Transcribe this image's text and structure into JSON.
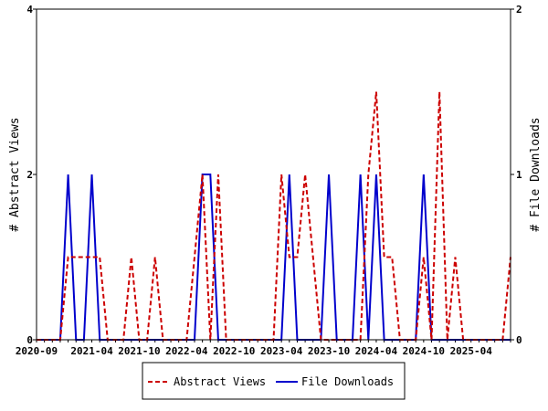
{
  "chart_data": {
    "type": "line",
    "x_months": [
      "2020-09",
      "2020-10",
      "2020-11",
      "2020-12",
      "2021-01",
      "2021-02",
      "2021-03",
      "2021-04",
      "2021-05",
      "2021-06",
      "2021-07",
      "2021-08",
      "2021-09",
      "2021-10",
      "2021-11",
      "2021-12",
      "2022-01",
      "2022-02",
      "2022-03",
      "2022-04",
      "2022-05",
      "2022-06",
      "2022-07",
      "2022-08",
      "2022-09",
      "2022-10",
      "2022-11",
      "2022-12",
      "2023-01",
      "2023-02",
      "2023-03",
      "2023-04",
      "2023-05",
      "2023-06",
      "2023-07",
      "2023-08",
      "2023-09",
      "2023-10",
      "2023-11",
      "2023-12",
      "2024-01",
      "2024-02",
      "2024-03",
      "2024-04",
      "2024-05",
      "2024-06",
      "2024-07",
      "2024-08",
      "2024-09",
      "2024-10",
      "2024-11",
      "2024-12",
      "2025-01",
      "2025-02",
      "2025-03",
      "2025-04",
      "2025-05",
      "2025-06",
      "2025-07",
      "2025-08",
      "2025-09"
    ],
    "x_tick_labels": [
      "2020-09",
      "2021-04",
      "2021-10",
      "2022-04",
      "2022-10",
      "2023-04",
      "2023-10",
      "2024-04",
      "2024-10",
      "2025-04"
    ],
    "series": [
      {
        "name": "Abstract Views",
        "axis": "left",
        "color": "#cc0000",
        "style": "dashed",
        "values": [
          0,
          0,
          0,
          0,
          1,
          1,
          1,
          1,
          1,
          0,
          0,
          0,
          1,
          0,
          0,
          1,
          0,
          0,
          0,
          0,
          1,
          2,
          0,
          2,
          0,
          0,
          0,
          0,
          0,
          0,
          0,
          2,
          1,
          1,
          2,
          1,
          0,
          0,
          0,
          0,
          0,
          0,
          2,
          3,
          1,
          1,
          0,
          0,
          0,
          1,
          0,
          3,
          0,
          1,
          0,
          0,
          0,
          0,
          0,
          0,
          1
        ]
      },
      {
        "name": "File Downloads",
        "axis": "right",
        "color": "#0000cc",
        "style": "solid",
        "values": [
          0,
          0,
          0,
          0,
          1,
          0,
          0,
          1,
          0,
          0,
          0,
          0,
          0,
          0,
          0,
          0,
          0,
          0,
          0,
          0,
          0,
          1,
          1,
          0,
          0,
          0,
          0,
          0,
          0,
          0,
          0,
          0,
          1,
          0,
          0,
          0,
          0,
          1,
          0,
          0,
          0,
          1,
          0,
          1,
          0,
          0,
          0,
          0,
          0,
          1,
          0,
          0,
          0,
          0,
          0,
          0,
          0,
          0,
          0,
          0,
          0
        ]
      }
    ],
    "ylabel_left": "# Abstract Views",
    "ylabel_right": "# File Downloads",
    "ylim_left": [
      0,
      4
    ],
    "ylim_right": [
      0,
      2
    ],
    "y_ticks_left": [
      "0",
      "2",
      "4"
    ],
    "y_ticks_right": [
      "0",
      "1",
      "2"
    ],
    "grid": false,
    "legend_position": "bottom"
  }
}
